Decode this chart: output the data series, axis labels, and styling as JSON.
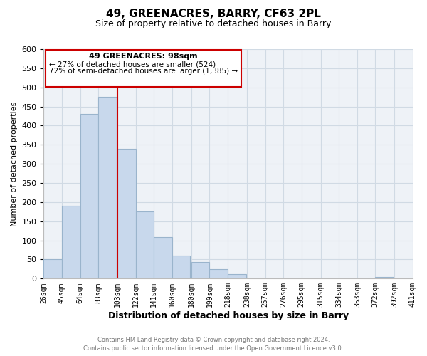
{
  "title": "49, GREENACRES, BARRY, CF63 2PL",
  "subtitle": "Size of property relative to detached houses in Barry",
  "xlabel": "Distribution of detached houses by size in Barry",
  "ylabel": "Number of detached properties",
  "bar_color": "#c8d8ec",
  "bar_edge_color": "#9ab4cc",
  "bar_left_edges": [
    26,
    45,
    64,
    83,
    103,
    122,
    141,
    160,
    180,
    199,
    218,
    238,
    257,
    276,
    295,
    315,
    334,
    353,
    372,
    392
  ],
  "bar_heights": [
    50,
    190,
    430,
    475,
    340,
    175,
    108,
    60,
    44,
    25,
    12,
    0,
    0,
    0,
    0,
    0,
    0,
    0,
    5,
    0
  ],
  "bin_width": 19,
  "x_tick_labels": [
    "26sqm",
    "45sqm",
    "64sqm",
    "83sqm",
    "103sqm",
    "122sqm",
    "141sqm",
    "160sqm",
    "180sqm",
    "199sqm",
    "218sqm",
    "238sqm",
    "257sqm",
    "276sqm",
    "295sqm",
    "315sqm",
    "334sqm",
    "353sqm",
    "372sqm",
    "392sqm",
    "411sqm"
  ],
  "x_tick_positions": [
    26,
    45,
    64,
    83,
    103,
    122,
    141,
    160,
    180,
    199,
    218,
    238,
    257,
    276,
    295,
    315,
    334,
    353,
    372,
    392,
    411
  ],
  "xlim_left": 26,
  "xlim_right": 411,
  "ylim": [
    0,
    600
  ],
  "yticks": [
    0,
    50,
    100,
    150,
    200,
    250,
    300,
    350,
    400,
    450,
    500,
    550,
    600
  ],
  "vline_x": 103,
  "vline_color": "#cc0000",
  "annotation_text_line1": "49 GREENACRES: 98sqm",
  "annotation_text_line2": "← 27% of detached houses are smaller (524)",
  "annotation_text_line3": "72% of semi-detached houses are larger (1,385) →",
  "annotation_box_facecolor": "#ffffff",
  "annotation_box_edgecolor": "#cc0000",
  "footnote_line1": "Contains HM Land Registry data © Crown copyright and database right 2024.",
  "footnote_line2": "Contains public sector information licensed under the Open Government Licence v3.0.",
  "grid_color": "#d0dae4",
  "background_color": "#eef2f7"
}
